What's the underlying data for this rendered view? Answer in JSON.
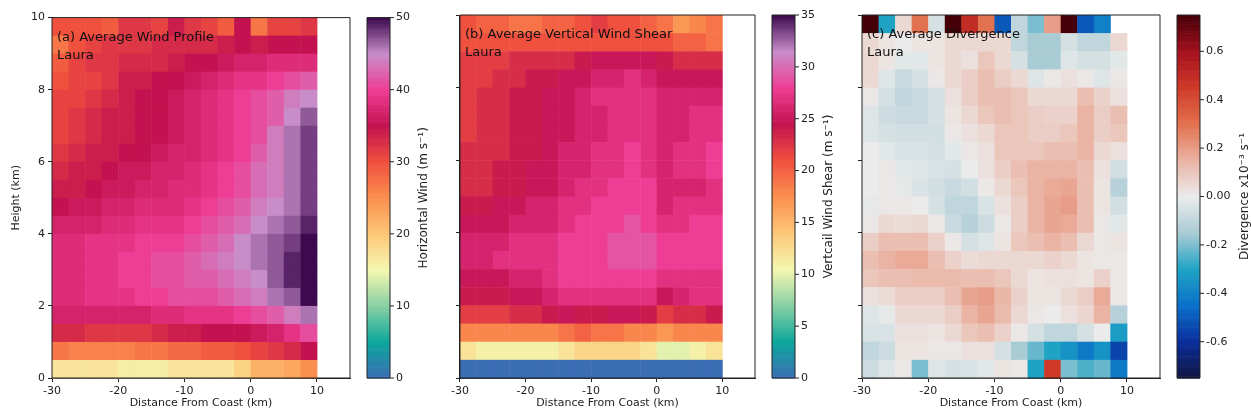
{
  "chart_data": [
    {
      "type": "heatmap",
      "title": "(a) Average Wind Profile",
      "subtitle": "Laura",
      "xlabel": "Distance From Coast (km)",
      "ylabel": "Height (km)",
      "clabel": "Horizontal Wind (m s⁻¹)",
      "x": [
        -28.75,
        -26.25,
        -23.75,
        -21.25,
        -18.75,
        -16.25,
        -13.75,
        -11.25,
        -8.75,
        -6.25,
        -3.75,
        -1.25,
        1.25,
        3.75,
        6.25,
        8.75
      ],
      "xlim": [
        -30,
        15
      ],
      "xticks": [
        -30,
        -20,
        -10,
        0,
        10
      ],
      "ylim": [
        0,
        10
      ],
      "yticks": [
        0,
        2,
        4,
        6,
        8,
        10
      ],
      "clim": [
        0,
        50
      ],
      "cticks": [
        0,
        10,
        20,
        30,
        40,
        50
      ],
      "colors": [
        "#3b6db5",
        "#0ca69c",
        "#86cfa3",
        "#f4f7b0",
        "#fdc878",
        "#fb8f4f",
        "#f0503e",
        "#c3124f",
        "#ee3d94",
        "#c88dc9",
        "#3d0a4f"
      ],
      "cells": [
        [
          30,
          30,
          30,
          29,
          32,
          32,
          31,
          34,
          32,
          31,
          29,
          35,
          27,
          31,
          31,
          32
        ],
        [
          27,
          30,
          31,
          32,
          32,
          32,
          33,
          33,
          33,
          33,
          34,
          35,
          34,
          35,
          35,
          35
        ],
        [
          29,
          31,
          32,
          32,
          33,
          33,
          33,
          34,
          35,
          35,
          36,
          37,
          37,
          38,
          38,
          38
        ],
        [
          30,
          31,
          31,
          32,
          34,
          34,
          35,
          35,
          36,
          37,
          38,
          39,
          39,
          40,
          41,
          42
        ],
        [
          31,
          31,
          32,
          33,
          34,
          35,
          35,
          36,
          37,
          38,
          39,
          40,
          41,
          42,
          44,
          45
        ],
        [
          31,
          32,
          33,
          34,
          34,
          35,
          35,
          36,
          37,
          38,
          39,
          40,
          41,
          42,
          45,
          47
        ],
        [
          31,
          32,
          33,
          34,
          34,
          35,
          35,
          36,
          37,
          38,
          39,
          40,
          41,
          44,
          46,
          48
        ],
        [
          32,
          33,
          34,
          34,
          35,
          35,
          36,
          37,
          37,
          38,
          39,
          40,
          42,
          44,
          46,
          48
        ],
        [
          33,
          34,
          34,
          35,
          36,
          36,
          37,
          37,
          38,
          39,
          40,
          41,
          43,
          44,
          46,
          48
        ],
        [
          34,
          34,
          35,
          36,
          36,
          37,
          37,
          38,
          38,
          39,
          40,
          41,
          43,
          44,
          46,
          48
        ],
        [
          35,
          36,
          36,
          37,
          37,
          38,
          38,
          38,
          39,
          40,
          41,
          42,
          44,
          45,
          46,
          48
        ],
        [
          37,
          37,
          37,
          38,
          38,
          39,
          39,
          39,
          40,
          41,
          42,
          43,
          45,
          46,
          47,
          49
        ],
        [
          38,
          38,
          39,
          39,
          39,
          40,
          40,
          40,
          41,
          42,
          43,
          45,
          46,
          47,
          48,
          50
        ],
        [
          38,
          38,
          39,
          39,
          40,
          40,
          41,
          41,
          42,
          43,
          44,
          45,
          46,
          47,
          49,
          50
        ],
        [
          38,
          38,
          39,
          39,
          40,
          40,
          41,
          41,
          42,
          42,
          43,
          44,
          45,
          47,
          49,
          50
        ],
        [
          38,
          38,
          39,
          39,
          39,
          40,
          40,
          41,
          41,
          41,
          42,
          43,
          44,
          46,
          47,
          50
        ],
        [
          37,
          37,
          37,
          37,
          37,
          37,
          38,
          38,
          39,
          39,
          39,
          40,
          41,
          42,
          44,
          46
        ],
        [
          33,
          33,
          32,
          32,
          32,
          32,
          33,
          34,
          34,
          35,
          35,
          35,
          36,
          37,
          39,
          41
        ],
        [
          27,
          26,
          26,
          26,
          26,
          27,
          27,
          28,
          28,
          29,
          29,
          30,
          31,
          32,
          33,
          35
        ],
        [
          17,
          17,
          17,
          17,
          16,
          16,
          16,
          17,
          17,
          17,
          17,
          19,
          22,
          22,
          23,
          25
        ]
      ]
    },
    {
      "type": "heatmap",
      "title": "(b) Average Vertical Wind Shear",
      "subtitle": "Laura",
      "xlabel": "Distance From Coast (km)",
      "clabel": "Vertcail Wind Shear (m s⁻¹)",
      "tick_labels": "x",
      "x": [
        -28.75,
        -26.25,
        -23.75,
        -21.25,
        -18.75,
        -16.25,
        -13.75,
        -11.25,
        -8.75,
        -6.25,
        -3.75,
        -1.25,
        1.25,
        3.75,
        6.25,
        8.75
      ],
      "xlim": [
        -30,
        15
      ],
      "xticks": [
        -30,
        -20,
        -10,
        0,
        10
      ],
      "ylim": [
        0,
        10
      ],
      "yticks": [
        0,
        2,
        4,
        6,
        8,
        10
      ],
      "clim": [
        0,
        35
      ],
      "cticks": [
        0,
        5,
        10,
        15,
        20,
        25,
        30,
        35
      ],
      "colors": [
        "#3b6db5",
        "#0ca69c",
        "#86cfa3",
        "#f4f7b0",
        "#fdc878",
        "#fb8f4f",
        "#f0503e",
        "#c3124f",
        "#ee3d94",
        "#c88dc9",
        "#3d0a4f"
      ],
      "cells": [
        [
          21,
          20,
          20,
          19,
          19,
          20,
          20,
          21,
          22,
          21,
          21,
          20,
          19,
          17,
          18,
          19
        ],
        [
          21,
          21,
          21,
          21,
          21,
          21,
          21,
          21,
          21,
          21,
          21,
          21,
          21,
          20,
          20,
          19
        ],
        [
          22,
          22,
          22,
          23,
          23,
          23,
          23,
          24,
          25,
          25,
          25,
          25,
          24,
          23,
          23,
          23
        ],
        [
          22,
          22,
          23,
          23,
          24,
          24,
          25,
          25,
          26,
          26,
          27,
          26,
          25,
          25,
          25,
          25
        ],
        [
          22,
          23,
          23,
          24,
          24,
          25,
          25,
          26,
          27,
          27,
          27,
          27,
          26,
          26,
          26,
          26
        ],
        [
          22,
          23,
          23,
          24,
          24,
          25,
          25,
          26,
          26,
          27,
          27,
          27,
          26,
          26,
          27,
          27
        ],
        [
          22,
          23,
          23,
          24,
          24,
          25,
          25,
          26,
          26,
          27,
          27,
          27,
          26,
          26,
          27,
          27
        ],
        [
          23,
          23,
          23,
          24,
          24,
          25,
          26,
          26,
          27,
          27,
          28,
          27,
          26,
          27,
          27,
          28
        ],
        [
          23,
          23,
          24,
          24,
          25,
          25,
          26,
          26,
          27,
          27,
          28,
          27,
          26,
          27,
          27,
          28
        ],
        [
          23,
          23,
          24,
          24,
          25,
          25,
          26,
          27,
          27,
          28,
          28,
          28,
          26,
          26,
          26,
          27
        ],
        [
          24,
          24,
          25,
          25,
          26,
          26,
          27,
          27,
          28,
          28,
          28,
          28,
          26,
          27,
          27,
          27
        ],
        [
          25,
          25,
          25,
          26,
          26,
          26,
          27,
          28,
          28,
          28,
          29,
          28,
          27,
          27,
          28,
          28
        ],
        [
          26,
          26,
          26,
          27,
          27,
          27,
          28,
          28,
          28,
          29,
          29,
          29,
          28,
          28,
          28,
          28
        ],
        [
          26,
          26,
          27,
          27,
          27,
          27,
          28,
          28,
          28,
          29,
          29,
          29,
          28,
          28,
          28,
          28
        ],
        [
          25,
          25,
          25,
          26,
          26,
          27,
          28,
          28,
          28,
          28,
          28,
          28,
          27,
          27,
          27,
          27
        ],
        [
          24,
          24,
          24,
          25,
          25,
          26,
          27,
          27,
          27,
          27,
          27,
          27,
          25,
          26,
          27,
          27
        ],
        [
          22,
          22,
          22,
          23,
          23,
          24,
          25,
          24,
          24,
          25,
          25,
          24,
          22,
          23,
          23,
          24
        ],
        [
          18,
          18,
          18,
          18,
          18,
          18,
          19,
          20,
          19,
          19,
          18,
          18,
          17,
          18,
          18,
          18
        ],
        [
          12,
          11,
          11,
          11,
          11,
          11,
          12,
          13,
          13,
          13,
          13,
          12,
          10,
          10,
          11,
          12
        ],
        [
          0,
          0,
          0,
          0,
          0,
          0,
          0,
          0,
          0,
          0,
          0,
          0,
          0,
          0,
          0,
          0
        ]
      ]
    },
    {
      "type": "heatmap",
      "title": "(c) Average Divergence",
      "subtitle": "Laura",
      "xlabel": "Distance From Coast (km)",
      "clabel": "Divergence x10⁻³ s⁻¹",
      "tick_labels": "x",
      "x": [
        -28.75,
        -26.25,
        -23.75,
        -21.25,
        -18.75,
        -16.25,
        -13.75,
        -11.25,
        -8.75,
        -6.25,
        -3.75,
        -1.25,
        1.25,
        3.75,
        6.25,
        8.75
      ],
      "xlim": [
        -30,
        15
      ],
      "xticks": [
        -30,
        -20,
        -10,
        0,
        10
      ],
      "ylim": [
        0,
        10
      ],
      "yticks": [
        0,
        2,
        4,
        6,
        8,
        10
      ],
      "clim": [
        -0.75,
        0.75
      ],
      "cticks": [
        -0.6,
        -0.4,
        -0.2,
        {
          "value": 0,
          "label": "0.00"
        },
        0.2,
        0.4,
        0.6
      ],
      "colors": [
        "#10153f",
        "#0a2e9c",
        "#0a6fc8",
        "#1ea3c4",
        "#a9cbd4",
        "#ebebeb",
        "#eab3a3",
        "#e2714f",
        "#cf3a28",
        "#a5101e",
        "#460008"
      ],
      "cells": [
        [
          0.75,
          -0.3,
          0.05,
          0.3,
          -0.05,
          0.75,
          0.5,
          0.3,
          -0.5,
          -0.1,
          -0.2,
          0.2,
          0.75,
          -0.5,
          -0.4,
          null
        ],
        [
          0.05,
          0.02,
          0,
          0.02,
          0.02,
          0.05,
          0.05,
          0.05,
          0.05,
          -0.1,
          -0.15,
          -0.15,
          -0.05,
          -0.1,
          -0.1,
          0.05
        ],
        [
          0.05,
          0.02,
          -0.02,
          -0.02,
          0.02,
          0.05,
          0.03,
          0.1,
          0.05,
          -0.05,
          -0.15,
          -0.15,
          -0.03,
          -0.05,
          -0.05,
          -0.02
        ],
        [
          0.05,
          -0.03,
          -0.08,
          -0.05,
          0.01,
          0.05,
          0.08,
          0.12,
          0.08,
          0.05,
          -0.03,
          0.01,
          0.03,
          0.01,
          -0.03,
          0.01
        ],
        [
          0.01,
          -0.05,
          -0.1,
          -0.08,
          -0.05,
          0.03,
          0.08,
          0.12,
          0.12,
          0.1,
          0.05,
          0.05,
          0.05,
          0.12,
          0.07,
          0.03
        ],
        [
          -0.03,
          -0.07,
          -0.08,
          -0.08,
          -0.05,
          0.02,
          0.05,
          0.1,
          0.12,
          0.1,
          0.08,
          0.07,
          0.07,
          0.15,
          0.08,
          0.12
        ],
        [
          -0.03,
          -0.05,
          -0.06,
          -0.06,
          -0.06,
          0.01,
          0.03,
          0.05,
          0.1,
          0.1,
          0.08,
          0.08,
          0.1,
          0.15,
          0.08,
          0.1
        ],
        [
          0,
          -0.02,
          -0.04,
          -0.04,
          -0.05,
          -0.02,
          0.01,
          0.03,
          0.1,
          0.1,
          0.1,
          0.12,
          0.12,
          0.15,
          0.05,
          0.03
        ],
        [
          0,
          0.01,
          -0.02,
          -0.03,
          -0.04,
          -0.05,
          0,
          0.03,
          0.08,
          0.12,
          0.15,
          0.15,
          0.15,
          0.12,
          0.03,
          -0.06
        ],
        [
          0,
          0.01,
          -0.01,
          -0.04,
          -0.06,
          -0.08,
          -0.06,
          0.01,
          0.05,
          0.1,
          0.15,
          0.17,
          0.18,
          0.12,
          0.02,
          -0.12
        ],
        [
          -0.01,
          0.01,
          0.01,
          0,
          -0.05,
          -0.1,
          -0.1,
          -0.04,
          0.03,
          0.08,
          0.15,
          0.18,
          0.2,
          0.12,
          0.02,
          -0.06
        ],
        [
          0.01,
          0.05,
          0.04,
          0.05,
          0.01,
          -0.08,
          -0.12,
          -0.07,
          0.01,
          0.08,
          0.15,
          0.18,
          0.17,
          0.12,
          0.01,
          -0.02
        ],
        [
          0.08,
          0.12,
          0.12,
          0.12,
          0.07,
          0.01,
          -0.05,
          -0.03,
          0.02,
          0.1,
          0.12,
          0.15,
          0.12,
          0.05,
          0.01,
          0.02
        ],
        [
          0.12,
          0.15,
          0.17,
          0.17,
          0.12,
          0.07,
          0.04,
          0.05,
          0.05,
          0.05,
          0.05,
          0.07,
          0.05,
          0.02,
          0.01,
          0.01
        ],
        [
          0.1,
          0.12,
          0.12,
          0.13,
          0.13,
          0.13,
          0.12,
          0.12,
          0.1,
          0.05,
          0.02,
          0.03,
          0.03,
          0.02,
          0.07,
          0.01
        ],
        [
          0.03,
          0.04,
          0.08,
          0.08,
          0.08,
          0.12,
          0.18,
          0.2,
          0.14,
          0.07,
          0.02,
          0.02,
          0.05,
          0.08,
          0.17,
          0.01
        ],
        [
          -0.03,
          -0.01,
          0.05,
          0.05,
          0.05,
          0.08,
          0.15,
          0.18,
          0.13,
          0.05,
          0.01,
          0,
          0.03,
          0.06,
          0.15,
          -0.12
        ],
        [
          -0.04,
          -0.04,
          0.03,
          0.03,
          0.02,
          0.05,
          0.1,
          0.12,
          0.07,
          0.01,
          -0.05,
          -0.1,
          -0.1,
          -0.05,
          0,
          -0.32
        ],
        [
          -0.1,
          -0.07,
          0.02,
          0.02,
          0.01,
          0.01,
          0.03,
          0.03,
          -0.05,
          -0.15,
          -0.22,
          -0.3,
          -0.35,
          -0.42,
          -0.35,
          -0.55
        ],
        [
          -0.07,
          -0.03,
          0.01,
          -0.2,
          -0.03,
          -0.05,
          -0.04,
          -0.02,
          0.02,
          0.01,
          -0.3,
          0.45,
          -0.2,
          -0.25,
          -0.22,
          -0.42
        ]
      ]
    }
  ]
}
